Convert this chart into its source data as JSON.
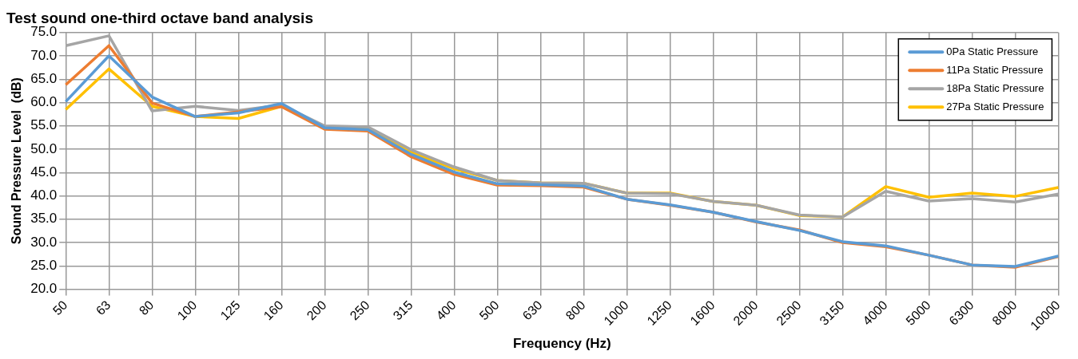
{
  "chart_data": {
    "type": "line",
    "title": "Test sound one-third octave band analysis",
    "xlabel": "Frequency (Hz)",
    "ylabel": "Sound Pressure Level  (dB)",
    "categories": [
      "50",
      "63",
      "80",
      "100",
      "125",
      "160",
      "200",
      "250",
      "315",
      "400",
      "500",
      "630",
      "800",
      "1000",
      "1250",
      "1600",
      "2000",
      "2500",
      "3150",
      "4000",
      "5000",
      "6300",
      "8000",
      "10000"
    ],
    "series": [
      {
        "name": "0Pa Static Pressure",
        "color": "#5b9bd5",
        "values": [
          60.2,
          70.0,
          61.2,
          57.0,
          57.8,
          59.8,
          54.6,
          54.2,
          48.9,
          45.1,
          42.6,
          42.4,
          42.1,
          39.3,
          38.1,
          36.5,
          34.5,
          32.6,
          30.2,
          29.3,
          27.3,
          25.2,
          24.9,
          27.1
        ]
      },
      {
        "name": "11Pa Static Pressure",
        "color": "#ed7d31",
        "values": [
          63.8,
          72.2,
          59.9,
          57.0,
          58.0,
          59.1,
          54.3,
          53.9,
          48.4,
          44.6,
          42.3,
          42.2,
          41.9,
          39.3,
          38.0,
          36.5,
          34.4,
          32.7,
          30.0,
          29.1,
          27.3,
          25.2,
          24.7,
          27.0
        ]
      },
      {
        "name": "18Pa Static Pressure",
        "color": "#a5a5a5",
        "values": [
          72.2,
          74.3,
          58.2,
          59.2,
          58.3,
          59.5,
          55.0,
          54.8,
          49.9,
          46.2,
          43.3,
          42.8,
          42.7,
          40.6,
          40.5,
          38.8,
          38.0,
          35.9,
          35.5,
          41.0,
          38.9,
          39.4,
          38.7,
          40.4
        ]
      },
      {
        "name": "27Pa Static Pressure",
        "color": "#ffc000",
        "values": [
          58.5,
          67.2,
          59.2,
          57.0,
          56.6,
          59.2,
          54.7,
          54.3,
          49.4,
          45.8,
          43.3,
          42.8,
          42.7,
          40.6,
          40.6,
          38.8,
          38.0,
          35.8,
          35.5,
          42.0,
          39.7,
          40.6,
          39.9,
          41.8
        ]
      }
    ],
    "ylim": [
      20,
      75
    ],
    "yticks": [
      {
        "value": 20,
        "label": "20.0"
      },
      {
        "value": 25,
        "label": "25.0"
      },
      {
        "value": 30,
        "label": "30.0"
      },
      {
        "value": 35,
        "label": "35.0"
      },
      {
        "value": 40,
        "label": "40.0"
      },
      {
        "value": 45,
        "label": "45.0"
      },
      {
        "value": 50,
        "label": "50.0"
      },
      {
        "value": 55,
        "label": "55.0"
      },
      {
        "value": 60,
        "label": "60.0"
      },
      {
        "value": 65,
        "label": "65.0"
      },
      {
        "value": 70,
        "label": "70.0"
      },
      {
        "value": 75,
        "label": "75.0"
      }
    ],
    "grid": true,
    "legend": "top right",
    "line_style": "solid"
  }
}
